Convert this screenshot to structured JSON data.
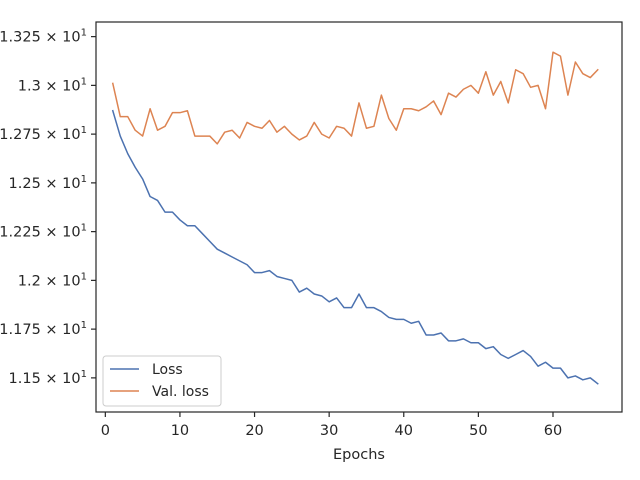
{
  "chart_data": {
    "type": "line",
    "xlabel": "Epochs",
    "ylabel": "",
    "xlim": [
      -1.25,
      69.25
    ],
    "ylim": [
      11.325,
      13.325
    ],
    "x_ticks": [
      0,
      10,
      20,
      30,
      40,
      50,
      60
    ],
    "y_ticks": [
      {
        "value": 11.5,
        "label": "1.15 × 10",
        "exp": "1"
      },
      {
        "value": 11.75,
        "label": "1.175 × 10",
        "exp": "1"
      },
      {
        "value": 12.0,
        "label": "1.2 × 10",
        "exp": "1"
      },
      {
        "value": 12.25,
        "label": "1.225 × 10",
        "exp": "1"
      },
      {
        "value": 12.5,
        "label": "1.25 × 10",
        "exp": "1"
      },
      {
        "value": 12.75,
        "label": "1.275 × 10",
        "exp": "1"
      },
      {
        "value": 13.0,
        "label": "1.3 × 10",
        "exp": "1"
      },
      {
        "value": 13.25,
        "label": "1.325 × 10",
        "exp": "1"
      }
    ],
    "grid": false,
    "legend_position": "lower-left",
    "x": [
      1,
      2,
      3,
      4,
      5,
      6,
      7,
      8,
      9,
      10,
      11,
      12,
      13,
      14,
      15,
      16,
      17,
      18,
      19,
      20,
      21,
      22,
      23,
      24,
      25,
      26,
      27,
      28,
      29,
      30,
      31,
      32,
      33,
      34,
      35,
      36,
      37,
      38,
      39,
      40,
      41,
      42,
      43,
      44,
      45,
      46,
      47,
      48,
      49,
      50,
      51,
      52,
      53,
      54,
      55,
      56,
      57,
      58,
      59,
      60,
      61,
      62,
      63,
      64,
      65,
      66
    ],
    "series": [
      {
        "name": "Loss",
        "color": "#4c72b0",
        "values": [
          12.87,
          12.74,
          12.65,
          12.58,
          12.52,
          12.43,
          12.41,
          12.35,
          12.35,
          12.31,
          12.28,
          12.28,
          12.24,
          12.2,
          12.16,
          12.14,
          12.12,
          12.1,
          12.08,
          12.04,
          12.04,
          12.05,
          12.02,
          12.01,
          12.0,
          11.94,
          11.96,
          11.93,
          11.92,
          11.89,
          11.91,
          11.86,
          11.86,
          11.93,
          11.86,
          11.86,
          11.84,
          11.81,
          11.8,
          11.8,
          11.78,
          11.79,
          11.72,
          11.72,
          11.73,
          11.69,
          11.69,
          11.7,
          11.68,
          11.68,
          11.65,
          11.66,
          11.62,
          11.6,
          11.62,
          11.64,
          11.61,
          11.56,
          11.58,
          11.55,
          11.55,
          11.5,
          11.51,
          11.49,
          11.5,
          11.47
        ]
      },
      {
        "name": "Val. loss",
        "color": "#dd8452",
        "values": [
          13.01,
          12.84,
          12.84,
          12.77,
          12.74,
          12.88,
          12.77,
          12.79,
          12.86,
          12.86,
          12.87,
          12.74,
          12.74,
          12.74,
          12.7,
          12.76,
          12.77,
          12.73,
          12.81,
          12.79,
          12.78,
          12.82,
          12.76,
          12.79,
          12.75,
          12.72,
          12.74,
          12.81,
          12.75,
          12.73,
          12.79,
          12.78,
          12.74,
          12.91,
          12.78,
          12.79,
          12.95,
          12.83,
          12.77,
          12.88,
          12.88,
          12.87,
          12.89,
          12.92,
          12.85,
          12.96,
          12.94,
          12.98,
          13.0,
          12.96,
          13.07,
          12.95,
          13.02,
          12.91,
          13.08,
          13.06,
          12.99,
          13.0,
          12.88,
          13.17,
          13.15,
          12.95,
          13.12,
          13.06,
          13.04,
          13.08
        ]
      }
    ]
  }
}
